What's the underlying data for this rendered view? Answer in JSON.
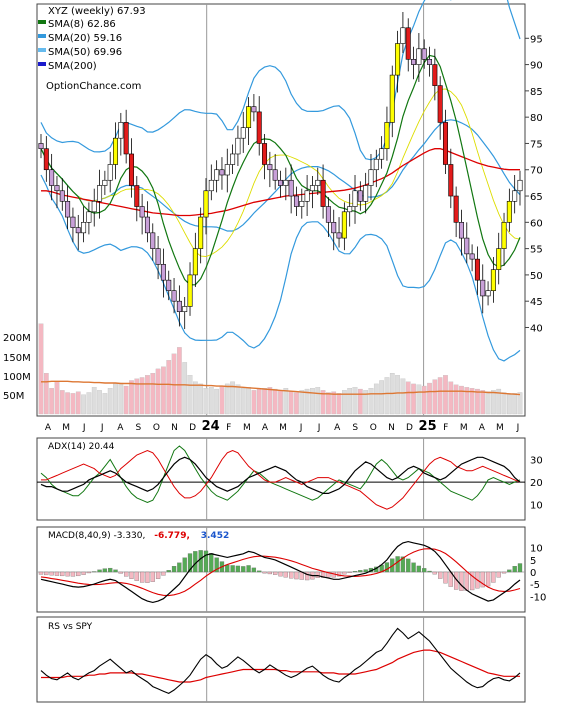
{
  "chart_data": {
    "type": "candlestick",
    "ticker": "XYZ (weekly) 67.93",
    "watermark": "OptionChance.com",
    "colors": {
      "up": "#ffff00",
      "down": "#e21b1b",
      "neutral": "#ffffff",
      "sma8": "#117711",
      "sma20": "#3399dd",
      "sma50": "#66bbee",
      "sma200": "#1a1acc",
      "bollinger": "#3399dd",
      "sma50band": "#dddd00",
      "red_line": "#dd0000",
      "vol_bar": "#f4b8c2",
      "vol_gray": "#dddddd",
      "vol_avg": "#dd7733",
      "adx": "#000000",
      "plus_di": "#117711",
      "minus_di": "#dd0000",
      "macd_line": "#000000",
      "signal_line": "#dd0000",
      "hist_pos": "#55aa55",
      "hist_neg": "#f4b8c2"
    },
    "legend": [
      {
        "label": "SMA(8) 62.86",
        "color": "#117711"
      },
      {
        "label": "SMA(20) 59.16",
        "color": "#3399dd"
      },
      {
        "label": "SMA(50) 69.96",
        "color": "#66bbee"
      },
      {
        "label": "SMA(200)",
        "color": "#1a1acc"
      }
    ],
    "price_axis": {
      "ticks": [
        "95",
        "90",
        "85",
        "80",
        "75",
        "70",
        "65",
        "60",
        "55",
        "50",
        "45",
        "40"
      ],
      "ylim": [
        35,
        100
      ]
    },
    "volume_axis": {
      "ticks": [
        "200M",
        "150M",
        "100M",
        "50M"
      ]
    },
    "x_labels": [
      "A",
      "M",
      "J",
      "J",
      "A",
      "S",
      "O",
      "N",
      "D",
      "24",
      "F",
      "M",
      "A",
      "M",
      "J",
      "J",
      "A",
      "S",
      "O",
      "N",
      "D",
      "25",
      "F",
      "M",
      "A",
      "M",
      "J"
    ],
    "x_labels_bold": [
      "24",
      "25"
    ],
    "close": [
      74,
      70,
      67,
      66,
      64,
      61,
      59,
      58,
      60,
      62,
      64,
      67,
      68,
      71,
      76,
      79,
      73,
      67,
      63,
      61,
      58,
      55,
      52,
      49,
      47,
      45,
      43,
      44,
      50,
      55,
      61,
      66,
      68,
      70,
      69,
      71,
      73,
      76,
      78,
      82,
      81,
      75,
      71,
      70,
      68,
      67,
      68,
      65,
      63,
      64,
      66,
      67,
      68,
      63,
      60,
      58,
      57,
      62,
      63,
      66,
      64,
      67,
      70,
      72,
      74,
      79,
      88,
      94,
      97,
      91,
      90,
      93,
      91,
      90,
      86,
      79,
      71,
      65,
      60,
      57,
      54,
      53,
      49,
      46,
      47,
      51,
      55,
      60,
      64,
      66,
      68
    ],
    "sma200": [
      66,
      66,
      65.8,
      65.5,
      65.2,
      65,
      64.8,
      64.6,
      64.4,
      64.2,
      64,
      63.8,
      63.6,
      63.4,
      63.2,
      63,
      62.8,
      62.6,
      62.4,
      62.2,
      62,
      61.8,
      61.7,
      61.6,
      61.5,
      61.4,
      61.3,
      61.3,
      61.3,
      61.4,
      61.5,
      61.6,
      61.7,
      61.9,
      62.1,
      62.3,
      62.6,
      62.9,
      63.2,
      63.5,
      63.8,
      64,
      64.2,
      64.4,
      64.6,
      64.8,
      65,
      65.1,
      65.2,
      65.3,
      65.4,
      65.5,
      65.6,
      65.7,
      65.8,
      65.9,
      66,
      66.1,
      66.3,
      66.5,
      66.8,
      67.1,
      67.5,
      67.9,
      68.3,
      68.8,
      69.4,
      70.1,
      70.8,
      71.4,
      72,
      72.6,
      73.2,
      73.7,
      74,
      74,
      73.7,
      73.3,
      72.9,
      72.5,
      72.1,
      71.7,
      71.3,
      71,
      70.7,
      70.5,
      70.3,
      70.1,
      70,
      70,
      70
    ],
    "volume": [
      210,
      95,
      60,
      75,
      55,
      50,
      48,
      52,
      45,
      50,
      62,
      55,
      48,
      60,
      70,
      72,
      65,
      78,
      82,
      85,
      90,
      95,
      105,
      110,
      125,
      140,
      155,
      120,
      90,
      75,
      70,
      60,
      62,
      58,
      65,
      70,
      75,
      68,
      60,
      62,
      55,
      58,
      60,
      62,
      58,
      55,
      60,
      52,
      50,
      55,
      58,
      60,
      62,
      55,
      50,
      52,
      48,
      55,
      60,
      62,
      58,
      55,
      60,
      70,
      78,
      85,
      95,
      90,
      82,
      75,
      70,
      68,
      65,
      72,
      80,
      85,
      90,
      75,
      68,
      65,
      62,
      60,
      58,
      55,
      52,
      55,
      58,
      50,
      45,
      48,
      50
    ],
    "volume_avg": [
      75,
      75,
      76,
      76,
      76,
      76,
      75,
      75,
      74,
      74,
      73,
      73,
      72,
      72,
      72,
      71,
      71,
      71,
      70,
      70,
      70,
      70,
      69,
      69,
      69,
      68,
      68,
      68,
      67,
      67,
      67,
      66,
      66,
      65,
      65,
      64,
      64,
      63,
      62,
      61,
      60,
      59,
      58,
      57,
      56,
      55,
      54,
      53,
      52,
      51,
      50,
      49,
      48,
      47,
      47,
      46,
      46,
      46,
      46,
      46,
      46,
      46,
      47,
      47,
      47,
      48,
      48,
      49,
      49,
      50,
      50,
      51,
      51,
      52,
      52,
      53,
      53,
      53,
      53,
      53,
      52,
      52,
      51,
      51,
      50,
      50,
      49,
      48,
      47,
      46,
      45
    ],
    "adx": {
      "label": "ADX(14) 20.44",
      "ticks": [
        "30",
        "20",
        "10"
      ],
      "adx": [
        19,
        18,
        18,
        17,
        16,
        16,
        17,
        18,
        19,
        21,
        22,
        23,
        24,
        25,
        24,
        22,
        20,
        19,
        18,
        17,
        16,
        17,
        19,
        22,
        25,
        28,
        30,
        31,
        30,
        28,
        25,
        22,
        20,
        18,
        17,
        16,
        17,
        18,
        20,
        22,
        23,
        24,
        25,
        26,
        27,
        26,
        25,
        23,
        21,
        20,
        18,
        17,
        16,
        15,
        15,
        16,
        17,
        19,
        22,
        25,
        27,
        29,
        28,
        26,
        24,
        22,
        21,
        22,
        24,
        26,
        27,
        26,
        24,
        23,
        22,
        21,
        22,
        24,
        26,
        28,
        29,
        30,
        31,
        31,
        30,
        29,
        28,
        27,
        25,
        22,
        20
      ],
      "plus_di": [
        24,
        22,
        19,
        17,
        16,
        15,
        14,
        14,
        16,
        19,
        22,
        24,
        27,
        30,
        26,
        22,
        18,
        15,
        13,
        12,
        11,
        12,
        16,
        22,
        28,
        34,
        36,
        34,
        30,
        26,
        22,
        19,
        16,
        14,
        13,
        12,
        14,
        16,
        19,
        22,
        25,
        24,
        22,
        20,
        19,
        18,
        17,
        16,
        15,
        14,
        13,
        12,
        13,
        15,
        17,
        19,
        21,
        20,
        19,
        18,
        17,
        20,
        24,
        28,
        30,
        28,
        25,
        22,
        21,
        22,
        24,
        26,
        25,
        24,
        22,
        20,
        18,
        16,
        15,
        14,
        13,
        12,
        14,
        17,
        21,
        22,
        21,
        20,
        19,
        20,
        21
      ],
      "minus_di": [
        21,
        21,
        22,
        23,
        24,
        25,
        26,
        27,
        28,
        27,
        26,
        24,
        23,
        22,
        23,
        26,
        28,
        30,
        32,
        33,
        34,
        33,
        30,
        26,
        22,
        18,
        15,
        13,
        13,
        14,
        16,
        19,
        22,
        26,
        30,
        33,
        34,
        33,
        30,
        27,
        25,
        23,
        21,
        20,
        20,
        21,
        22,
        21,
        20,
        19,
        20,
        21,
        22,
        22,
        22,
        21,
        20,
        19,
        18,
        17,
        16,
        14,
        12,
        10,
        9,
        8,
        9,
        11,
        13,
        16,
        19,
        22,
        25,
        28,
        30,
        31,
        30,
        29,
        27,
        26,
        25,
        25,
        26,
        27,
        26,
        25,
        24,
        23,
        22,
        21,
        20
      ]
    },
    "macd": {
      "label_prefix": "MACD(8,40,9) -3.330,",
      "label_signal": "-6.779,",
      "label_hist": "3.452",
      "ticks": [
        "10",
        "5",
        "0",
        "-5",
        "-10"
      ],
      "macd": [
        -3,
        -3.5,
        -4,
        -4.5,
        -5,
        -5.5,
        -6,
        -6.2,
        -6,
        -5.5,
        -5,
        -4.2,
        -3.5,
        -3,
        -3.5,
        -5,
        -6.5,
        -8,
        -9.5,
        -11,
        -12,
        -12.5,
        -12,
        -11,
        -9,
        -7,
        -5,
        -2,
        1,
        3.5,
        5.5,
        7,
        7.5,
        7,
        6.5,
        6,
        6.5,
        7,
        7.5,
        8.5,
        8,
        7,
        6,
        5.5,
        5,
        4,
        3,
        2,
        1,
        0,
        -1,
        -1.5,
        -1.5,
        -2,
        -2.5,
        -3,
        -3,
        -2.5,
        -2,
        -1.5,
        -1,
        -0.5,
        0.5,
        1.5,
        3,
        5,
        8,
        10.5,
        12,
        12.5,
        12,
        11.5,
        11,
        10,
        8.5,
        6,
        3,
        0,
        -3,
        -5.5,
        -7.5,
        -9,
        -10,
        -11,
        -12,
        -11.5,
        -10,
        -8.5,
        -7,
        -5,
        -3.3
      ],
      "signal": [
        -2,
        -2.3,
        -2.7,
        -3,
        -3.4,
        -3.8,
        -4.2,
        -4.6,
        -4.9,
        -5.1,
        -5.2,
        -5.1,
        -4.9,
        -4.6,
        -4.4,
        -4.4,
        -4.7,
        -5.2,
        -5.9,
        -6.7,
        -7.6,
        -8.5,
        -9.2,
        -9.6,
        -9.7,
        -9.4,
        -8.8,
        -7.9,
        -6.6,
        -5,
        -3.4,
        -1.7,
        -0.2,
        1.1,
        2.2,
        3.1,
        3.8,
        4.5,
        5.2,
        5.8,
        6.3,
        6.5,
        6.5,
        6.3,
        6.1,
        5.7,
        5.2,
        4.6,
        3.9,
        3.1,
        2.3,
        1.5,
        0.9,
        0.3,
        -0.3,
        -0.8,
        -1.3,
        -1.6,
        -1.7,
        -1.8,
        -1.7,
        -1.5,
        -1.1,
        -0.6,
        0.1,
        1.1,
        2.5,
        4.1,
        5.7,
        7.1,
        8.2,
        9,
        9.5,
        9.6,
        9.4,
        8.7,
        7.6,
        6,
        4.2,
        2.2,
        0.2,
        -1.6,
        -3.3,
        -4.8,
        -6.2,
        -7.2,
        -7.8,
        -8,
        -7.9,
        -7.4,
        -6.8
      ]
    },
    "rs": {
      "label": "RS vs SPY",
      "rs": [
        62,
        58,
        55,
        54,
        57,
        60,
        56,
        54,
        57,
        60,
        62,
        66,
        69,
        72,
        68,
        64,
        60,
        62,
        58,
        55,
        52,
        48,
        46,
        44,
        42,
        45,
        49,
        53,
        58,
        65,
        72,
        76,
        73,
        68,
        64,
        66,
        70,
        74,
        71,
        67,
        63,
        60,
        63,
        67,
        64,
        61,
        58,
        56,
        58,
        61,
        64,
        66,
        62,
        58,
        55,
        53,
        52,
        56,
        59,
        63,
        66,
        70,
        74,
        78,
        80,
        86,
        93,
        99,
        95,
        90,
        93,
        96,
        92,
        88,
        82,
        76,
        70,
        64,
        60,
        56,
        52,
        49,
        47,
        48,
        52,
        55,
        56,
        54,
        53,
        56,
        60
      ],
      "avg": [
        56,
        56,
        56,
        56,
        56,
        57,
        57,
        57,
        57,
        58,
        58,
        59,
        59,
        60,
        60,
        60,
        60,
        60,
        59,
        59,
        58,
        57,
        56,
        55,
        54,
        53,
        52,
        52,
        52,
        53,
        54,
        56,
        57,
        58,
        59,
        60,
        61,
        62,
        63,
        63,
        63,
        63,
        63,
        63,
        63,
        62,
        62,
        61,
        61,
        61,
        61,
        61,
        61,
        60,
        60,
        60,
        59,
        59,
        59,
        59,
        60,
        61,
        62,
        63,
        65,
        67,
        69,
        72,
        74,
        76,
        78,
        79,
        80,
        80,
        79,
        78,
        76,
        74,
        72,
        70,
        68,
        66,
        64,
        62,
        60,
        59,
        58,
        57,
        57,
        57,
        57
      ]
    }
  }
}
